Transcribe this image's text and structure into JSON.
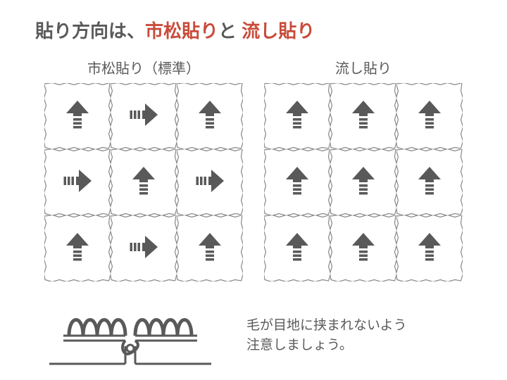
{
  "title": {
    "prefix": "貼り方向は、",
    "pattern1": "市松貼り",
    "connector": "と",
    "pattern2": "流し貼り"
  },
  "grids": {
    "left": {
      "label": "市松貼り（標準）",
      "arrows": [
        "up",
        "right",
        "up",
        "right",
        "up",
        "right",
        "up",
        "right",
        "up"
      ]
    },
    "right": {
      "label": "流し貼り",
      "arrows": [
        "up",
        "up",
        "up",
        "up",
        "up",
        "up",
        "up",
        "up",
        "up"
      ]
    }
  },
  "caution": {
    "line1": "毛が目地に挟まれないよう",
    "line2": "注意しましょう。"
  },
  "colors": {
    "text": "#5a5a5a",
    "accent": "#c94b3a",
    "arrow": "#595959",
    "tileBorder": "#888888",
    "background": "#ffffff"
  },
  "layout": {
    "tileSize": 94,
    "arrowSize": 44,
    "gridCols": 3,
    "gridRows": 3
  }
}
